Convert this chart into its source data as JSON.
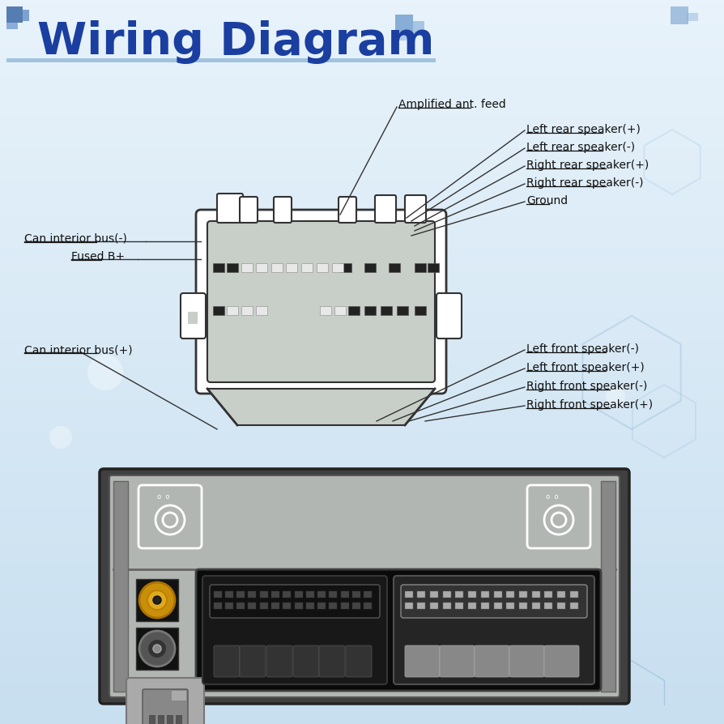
{
  "title": "Wiring Diagram",
  "title_color": "#1a3fa0",
  "bg_color_top": "#ddeef8",
  "bg_color": "#cce0f0",
  "title_underline_color": "#7aaad0",
  "connector_fill": "#c8cec8",
  "connector_outline": "#333333",
  "connector_inner_fill": "#b8beb8",
  "pin_dark": "#222222",
  "pin_light": "#e8e8e8",
  "label_font_size": 10,
  "label_color": "#111111",
  "line_color": "#333333",
  "radio_body": "#b0b4b0",
  "radio_dark": "#444444",
  "radio_outline": "#222222",
  "radio_stripe": "#888888",
  "conn_top_labels": [
    [
      "Amplified ant. feed",
      490,
      130,
      430,
      265
    ],
    [
      "Left rear speaker(+)",
      650,
      155,
      510,
      268
    ],
    [
      "Left rear speaker(-)",
      650,
      178,
      510,
      270
    ],
    [
      "Right rear speaker(+)",
      650,
      202,
      510,
      272
    ],
    [
      "Right rear speaker(-)",
      650,
      226,
      510,
      274
    ],
    [
      "Ground",
      650,
      250,
      510,
      276
    ]
  ],
  "conn_left_labels": [
    [
      "Can interior bus(-)",
      30,
      298,
      250,
      298
    ],
    [
      "Fused B+",
      90,
      318,
      250,
      318
    ]
  ],
  "conn_left_bottom_labels": [
    [
      "Can interior bus(+)",
      30,
      430,
      250,
      430
    ]
  ],
  "conn_right_bottom_labels": [
    [
      "Left front speaker(-)",
      620,
      430,
      505,
      470
    ],
    [
      "Left front speaker(+)",
      620,
      455,
      505,
      472
    ],
    [
      "Right front speaker(-)",
      620,
      480,
      505,
      474
    ],
    [
      "Right front speaker(+)",
      620,
      505,
      505,
      476
    ]
  ]
}
